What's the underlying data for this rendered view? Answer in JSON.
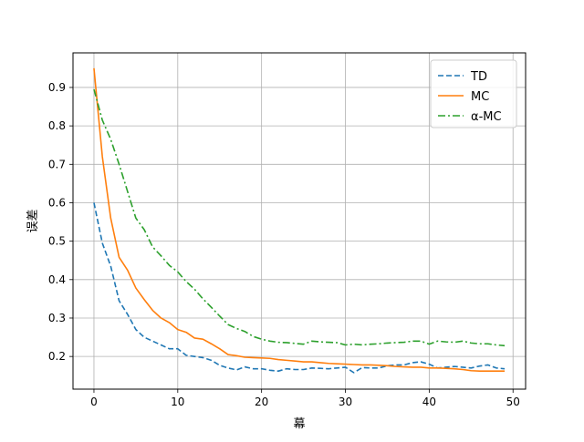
{
  "chart_data": {
    "type": "line",
    "title": "",
    "xlabel": "幕",
    "ylabel": "误差",
    "xlim": [
      -2.5,
      51.5
    ],
    "ylim": [
      0.115,
      0.99
    ],
    "xticks": [
      0,
      10,
      20,
      30,
      40,
      50
    ],
    "yticks": [
      0.2,
      0.3,
      0.4,
      0.5,
      0.6,
      0.7,
      0.8,
      0.9
    ],
    "xtick_labels": [
      "0",
      "10",
      "20",
      "30",
      "40",
      "50"
    ],
    "ytick_labels": [
      "0.2",
      "0.3",
      "0.4",
      "0.5",
      "0.6",
      "0.7",
      "0.8",
      "0.9"
    ],
    "grid": true,
    "legend_position": "top-right",
    "x": [
      0,
      1,
      2,
      3,
      4,
      5,
      6,
      7,
      8,
      9,
      10,
      11,
      12,
      13,
      14,
      15,
      16,
      17,
      18,
      19,
      20,
      21,
      22,
      23,
      24,
      25,
      26,
      27,
      28,
      29,
      30,
      31,
      32,
      33,
      34,
      35,
      36,
      37,
      38,
      39,
      40,
      41,
      42,
      43,
      44,
      45,
      46,
      47,
      48,
      49
    ],
    "series": [
      {
        "name": "TD",
        "color": "#1f77b4",
        "style": "dashed",
        "values": [
          0.6,
          0.495,
          0.435,
          0.345,
          0.31,
          0.27,
          0.25,
          0.24,
          0.23,
          0.22,
          0.22,
          0.203,
          0.2,
          0.197,
          0.19,
          0.177,
          0.17,
          0.165,
          0.173,
          0.168,
          0.168,
          0.164,
          0.162,
          0.168,
          0.166,
          0.166,
          0.17,
          0.169,
          0.168,
          0.17,
          0.172,
          0.158,
          0.171,
          0.17,
          0.17,
          0.176,
          0.178,
          0.178,
          0.184,
          0.186,
          0.18,
          0.17,
          0.172,
          0.174,
          0.172,
          0.17,
          0.175,
          0.178,
          0.17,
          0.168
        ]
      },
      {
        "name": "MC",
        "color": "#ff7f0e",
        "style": "solid",
        "values": [
          0.95,
          0.72,
          0.56,
          0.458,
          0.425,
          0.378,
          0.348,
          0.32,
          0.3,
          0.288,
          0.27,
          0.263,
          0.248,
          0.245,
          0.233,
          0.22,
          0.205,
          0.202,
          0.198,
          0.197,
          0.196,
          0.195,
          0.192,
          0.19,
          0.188,
          0.186,
          0.186,
          0.184,
          0.182,
          0.181,
          0.18,
          0.179,
          0.178,
          0.178,
          0.177,
          0.176,
          0.174,
          0.173,
          0.172,
          0.172,
          0.17,
          0.17,
          0.169,
          0.168,
          0.166,
          0.163,
          0.162,
          0.162,
          0.162,
          0.162
        ]
      },
      {
        "name": "α-MC",
        "color": "#2ca02c",
        "style": "dashdot",
        "values": [
          0.895,
          0.815,
          0.765,
          0.7,
          0.63,
          0.56,
          0.53,
          0.485,
          0.462,
          0.437,
          0.42,
          0.395,
          0.375,
          0.35,
          0.328,
          0.305,
          0.283,
          0.273,
          0.265,
          0.252,
          0.245,
          0.24,
          0.237,
          0.236,
          0.234,
          0.232,
          0.24,
          0.238,
          0.237,
          0.236,
          0.23,
          0.232,
          0.23,
          0.232,
          0.233,
          0.235,
          0.236,
          0.237,
          0.24,
          0.24,
          0.232,
          0.24,
          0.238,
          0.237,
          0.24,
          0.235,
          0.233,
          0.233,
          0.23,
          0.228
        ]
      }
    ]
  }
}
